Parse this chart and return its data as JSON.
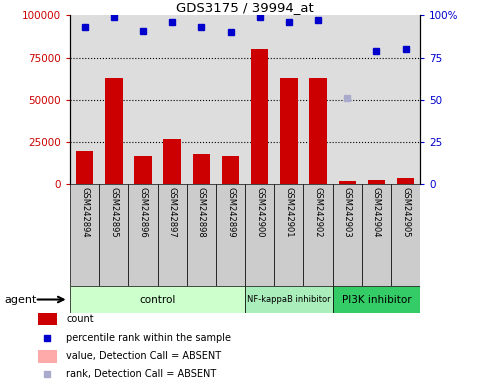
{
  "title": "GDS3175 / 39994_at",
  "samples": [
    "GSM242894",
    "GSM242895",
    "GSM242896",
    "GSM242897",
    "GSM242898",
    "GSM242899",
    "GSM242900",
    "GSM242901",
    "GSM242902",
    "GSM242903",
    "GSM242904",
    "GSM242905"
  ],
  "bar_values": [
    20000,
    63000,
    17000,
    27000,
    18000,
    17000,
    80000,
    63000,
    63000,
    2000,
    2500,
    3500
  ],
  "bar_absent": [
    false,
    false,
    false,
    false,
    false,
    false,
    false,
    false,
    false,
    false,
    false,
    false
  ],
  "percentile_values": [
    93,
    99,
    91,
    96,
    93,
    90,
    99,
    96,
    97,
    51,
    79,
    80
  ],
  "percentile_absent": [
    false,
    false,
    false,
    false,
    false,
    false,
    false,
    false,
    false,
    true,
    false,
    false
  ],
  "bar_color": "#CC0000",
  "bar_absent_color": "#FFAAAA",
  "dot_color": "#0000CC",
  "dot_absent_color": "#AAAACC",
  "ylim_left": [
    0,
    100000
  ],
  "ylim_right": [
    0,
    100
  ],
  "yticks_left": [
    0,
    25000,
    50000,
    75000,
    100000
  ],
  "ytick_labels_left": [
    "0",
    "25000",
    "50000",
    "75000",
    "100000"
  ],
  "yticks_right": [
    0,
    25,
    50,
    75,
    100
  ],
  "ytick_labels_right": [
    "0",
    "25",
    "50",
    "75",
    "100%"
  ],
  "groups": [
    {
      "label": "control",
      "start": 0,
      "end": 5,
      "color": "#CCFFCC"
    },
    {
      "label": "NF-kappaB inhibitor",
      "start": 6,
      "end": 8,
      "color": "#AAEEBB"
    },
    {
      "label": "PI3K inhibitor",
      "start": 9,
      "end": 11,
      "color": "#33CC66"
    }
  ],
  "plot_bg_color": "#DDDDDD",
  "bar_width": 0.6,
  "legend_items": [
    {
      "type": "rect",
      "color": "#CC0000",
      "label": "count"
    },
    {
      "type": "square",
      "color": "#0000CC",
      "label": "percentile rank within the sample"
    },
    {
      "type": "rect",
      "color": "#FFAAAA",
      "label": "value, Detection Call = ABSENT"
    },
    {
      "type": "square",
      "color": "#AAAACC",
      "label": "rank, Detection Call = ABSENT"
    }
  ]
}
